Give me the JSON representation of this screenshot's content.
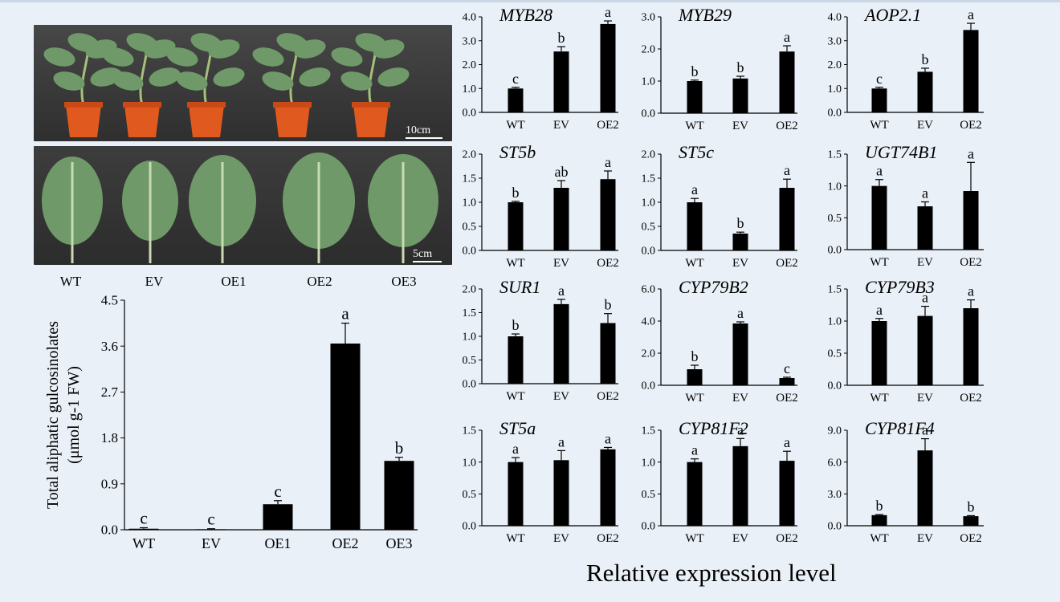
{
  "photos": {
    "labels": [
      "WT",
      "EV",
      "OE1",
      "OE2",
      "OE3"
    ],
    "scale_top": "10cm",
    "scale_bottom": "5cm"
  },
  "caption": "Relative expression level",
  "colors": {
    "bar": "#000000",
    "pot": "#e05a1f",
    "leaf": "#6f9968",
    "background": "#e9f0f7"
  },
  "chart_data": [
    {
      "id": "total",
      "type": "bar",
      "title": "",
      "ylabel": "Total aliphatic gulcosinolates",
      "ylabel2": "(μmol g-1 FW)",
      "categories": [
        "WT",
        "EV",
        "OE1",
        "OE2",
        "OE3"
      ],
      "values": [
        0.02,
        0.01,
        0.5,
        3.65,
        1.35
      ],
      "errors": [
        0.02,
        0.01,
        0.07,
        0.4,
        0.07
      ],
      "letters": [
        "c",
        "c",
        "c",
        "a",
        "b"
      ],
      "ylim": [
        0,
        4.5
      ],
      "ticks": [
        "0.0",
        "0.9",
        "1.8",
        "2.7",
        "3.6",
        "4.5"
      ]
    },
    {
      "id": "myb28",
      "type": "bar",
      "title": "MYB28",
      "categories": [
        "WT",
        "EV",
        "OE2"
      ],
      "values": [
        1.0,
        2.55,
        3.7
      ],
      "errors": [
        0.05,
        0.2,
        0.13
      ],
      "letters": [
        "c",
        "b",
        "a"
      ],
      "ylim": [
        0,
        4
      ],
      "ticks": [
        "0.0",
        "1.0",
        "2.0",
        "3.0",
        "4.0"
      ]
    },
    {
      "id": "myb29",
      "type": "bar",
      "title": "MYB29",
      "categories": [
        "WT",
        "EV",
        "OE2"
      ],
      "values": [
        1.0,
        1.08,
        1.92
      ],
      "errors": [
        0.03,
        0.07,
        0.18
      ],
      "letters": [
        "b",
        "b",
        "a"
      ],
      "ylim": [
        0,
        3
      ],
      "ticks": [
        "0.0",
        "1.0",
        "2.0",
        "3.0"
      ]
    },
    {
      "id": "aop21",
      "type": "bar",
      "title": "AOP2.1",
      "categories": [
        "WT",
        "EV",
        "OE2"
      ],
      "values": [
        1.0,
        1.7,
        3.45
      ],
      "errors": [
        0.05,
        0.15,
        0.28
      ],
      "letters": [
        "c",
        "b",
        "a"
      ],
      "ylim": [
        0,
        4
      ],
      "ticks": [
        "0.0",
        "1.0",
        "2.0",
        "3.0",
        "4.0"
      ]
    },
    {
      "id": "st5b",
      "type": "bar",
      "title": "ST5b",
      "categories": [
        "WT",
        "EV",
        "OE2"
      ],
      "values": [
        1.0,
        1.3,
        1.48
      ],
      "errors": [
        0.02,
        0.15,
        0.17
      ],
      "letters": [
        "b",
        "ab",
        "a"
      ],
      "ylim": [
        0,
        2
      ],
      "ticks": [
        "0.0",
        "0.5",
        "1.0",
        "1.5",
        "2.0"
      ]
    },
    {
      "id": "st5c",
      "type": "bar",
      "title": "ST5c",
      "categories": [
        "WT",
        "EV",
        "OE2"
      ],
      "values": [
        1.0,
        0.35,
        1.3
      ],
      "errors": [
        0.08,
        0.03,
        0.18
      ],
      "letters": [
        "a",
        "b",
        "a"
      ],
      "ylim": [
        0,
        2
      ],
      "ticks": [
        "0.0",
        "0.5",
        "1.0",
        "1.5",
        "2.0"
      ]
    },
    {
      "id": "ugt74b1",
      "type": "bar",
      "title": "UGT74B1",
      "categories": [
        "WT",
        "EV",
        "OE2"
      ],
      "values": [
        1.0,
        0.68,
        0.92
      ],
      "errors": [
        0.1,
        0.07,
        0.45
      ],
      "letters": [
        "a",
        "a",
        "a"
      ],
      "ylim": [
        0,
        1.5
      ],
      "ticks": [
        "0.0",
        "0.5",
        "1.0",
        "1.5"
      ]
    },
    {
      "id": "sur1",
      "type": "bar",
      "title": "SUR1",
      "categories": [
        "WT",
        "EV",
        "OE2"
      ],
      "values": [
        1.0,
        1.68,
        1.28
      ],
      "errors": [
        0.05,
        0.1,
        0.2
      ],
      "letters": [
        "b",
        "a",
        "b"
      ],
      "ylim": [
        0,
        2
      ],
      "ticks": [
        "0.0",
        "0.5",
        "1.0",
        "1.5",
        "2.0"
      ]
    },
    {
      "id": "cyp79b2",
      "type": "bar",
      "title": "CYP79B2",
      "categories": [
        "WT",
        "EV",
        "OE2"
      ],
      "values": [
        1.0,
        3.85,
        0.45
      ],
      "errors": [
        0.25,
        0.1,
        0.05
      ],
      "letters": [
        "b",
        "a",
        "c"
      ],
      "ylim": [
        0,
        6
      ],
      "ticks": [
        "0.0",
        "2.0",
        "4.0",
        "6.0"
      ]
    },
    {
      "id": "cyp79b3",
      "type": "bar",
      "title": "CYP79B3",
      "categories": [
        "WT",
        "EV",
        "OE2"
      ],
      "values": [
        1.0,
        1.08,
        1.2
      ],
      "errors": [
        0.04,
        0.15,
        0.13
      ],
      "letters": [
        "a",
        "a",
        "a"
      ],
      "ylim": [
        0,
        1.5
      ],
      "ticks": [
        "0.0",
        "0.5",
        "1.0",
        "1.5"
      ]
    },
    {
      "id": "st5a",
      "type": "bar",
      "title": "ST5a",
      "categories": [
        "WT",
        "EV",
        "OE2"
      ],
      "values": [
        1.0,
        1.03,
        1.2
      ],
      "errors": [
        0.07,
        0.15,
        0.03
      ],
      "letters": [
        "a",
        "a",
        "a"
      ],
      "ylim": [
        0,
        1.5
      ],
      "ticks": [
        "0.0",
        "0.5",
        "1.0",
        "1.5"
      ]
    },
    {
      "id": "cyp81f2",
      "type": "bar",
      "title": "CYP81F2",
      "categories": [
        "WT",
        "EV",
        "OE2"
      ],
      "values": [
        1.0,
        1.25,
        1.02
      ],
      "errors": [
        0.05,
        0.12,
        0.15
      ],
      "letters": [
        "a",
        "a",
        "a"
      ],
      "ylim": [
        0,
        1.5
      ],
      "ticks": [
        "0.0",
        "0.5",
        "1.0",
        "1.5"
      ]
    },
    {
      "id": "cyp81f4",
      "type": "bar",
      "title": "CYP81F4",
      "categories": [
        "WT",
        "EV",
        "OE2"
      ],
      "values": [
        1.0,
        7.1,
        0.9
      ],
      "errors": [
        0.05,
        1.1,
        0.05
      ],
      "letters": [
        "b",
        "a",
        "b"
      ],
      "ylim": [
        0,
        9
      ],
      "ticks": [
        "0.0",
        "3.0",
        "6.0",
        "9.0"
      ]
    }
  ]
}
